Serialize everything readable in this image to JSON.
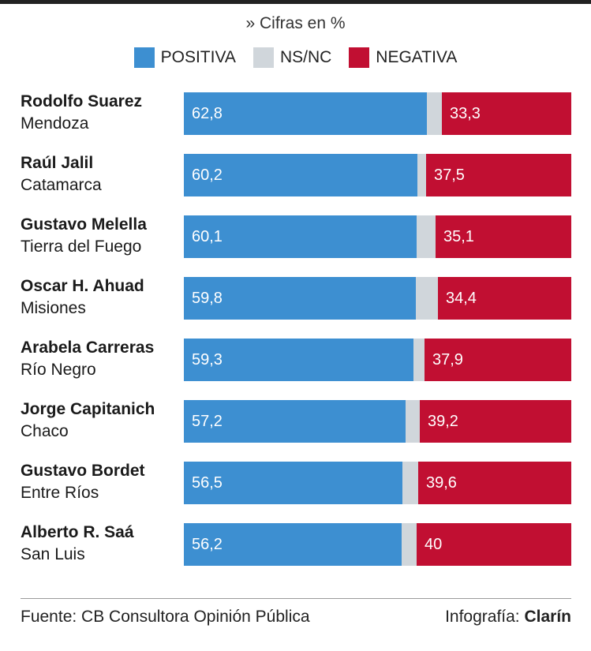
{
  "header": {
    "subtitle": "» Cifras en %"
  },
  "legend": [
    {
      "label": "POSITIVA",
      "color": "#3d8fd1"
    },
    {
      "label": "NS/NC",
      "color": "#d0d6db"
    },
    {
      "label": "NEGATIVA",
      "color": "#c10f32"
    }
  ],
  "chart_data": {
    "type": "bar",
    "stacked": true,
    "orientation": "horizontal",
    "categories": [
      {
        "name": "Rodolfo Suarez",
        "province": "Mendoza"
      },
      {
        "name": "Raúl Jalil",
        "province": "Catamarca"
      },
      {
        "name": "Gustavo Melella",
        "province": "Tierra del Fuego"
      },
      {
        "name": "Oscar H. Ahuad",
        "province": "Misiones"
      },
      {
        "name": "Arabela Carreras",
        "province": "Río Negro"
      },
      {
        "name": "Jorge Capitanich",
        "province": "Chaco"
      },
      {
        "name": "Gustavo Bordet",
        "province": "Entre Ríos"
      },
      {
        "name": "Alberto R. Saá",
        "province": "San Luis"
      }
    ],
    "series": [
      {
        "name": "POSITIVA",
        "color": "#3d8fd1",
        "values": [
          62.8,
          60.2,
          60.1,
          59.8,
          59.3,
          57.2,
          56.5,
          56.2
        ],
        "labels": [
          "62,8",
          "60,2",
          "60,1",
          "59,8",
          "59,3",
          "57,2",
          "56,5",
          "56,2"
        ]
      },
      {
        "name": "NS/NC",
        "color": "#d0d6db",
        "values": [
          3.9,
          2.3,
          4.8,
          5.8,
          2.8,
          3.6,
          3.9,
          3.8
        ]
      },
      {
        "name": "NEGATIVA",
        "color": "#c10f32",
        "values": [
          33.3,
          37.5,
          35.1,
          34.4,
          37.9,
          39.2,
          39.6,
          40
        ],
        "labels": [
          "33,3",
          "37,5",
          "35,1",
          "34,4",
          "37,9",
          "39,2",
          "39,6",
          "40"
        ]
      }
    ],
    "xlim": [
      0,
      100
    ],
    "grid": false,
    "legend_position": "top-center"
  },
  "footer": {
    "source": "Fuente: CB Consultora Opinión Pública",
    "credit_prefix": "Infografía: ",
    "credit_brand": "Clarín"
  }
}
